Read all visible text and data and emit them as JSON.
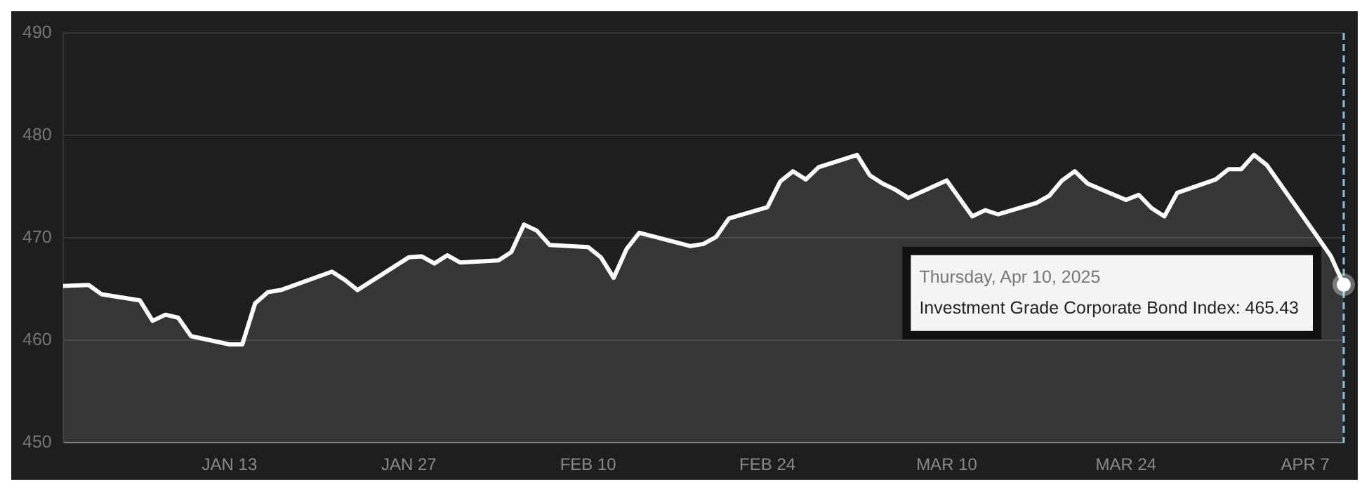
{
  "chart_data": {
    "type": "area",
    "x": [
      "2024-12-31",
      "2025-01-02",
      "2025-01-03",
      "2025-01-06",
      "2025-01-07",
      "2025-01-08",
      "2025-01-09",
      "2025-01-10",
      "2025-01-13",
      "2025-01-14",
      "2025-01-15",
      "2025-01-16",
      "2025-01-17",
      "2025-01-21",
      "2025-01-22",
      "2025-01-23",
      "2025-01-27",
      "2025-01-28",
      "2025-01-29",
      "2025-01-30",
      "2025-01-31",
      "2025-02-03",
      "2025-02-04",
      "2025-02-05",
      "2025-02-06",
      "2025-02-07",
      "2025-02-10",
      "2025-02-11",
      "2025-02-12",
      "2025-02-13",
      "2025-02-14",
      "2025-02-18",
      "2025-02-19",
      "2025-02-20",
      "2025-02-21",
      "2025-02-24",
      "2025-02-25",
      "2025-02-26",
      "2025-02-27",
      "2025-02-28",
      "2025-03-03",
      "2025-03-04",
      "2025-03-05",
      "2025-03-06",
      "2025-03-07",
      "2025-03-10",
      "2025-03-12",
      "2025-03-13",
      "2025-03-14",
      "2025-03-17",
      "2025-03-18",
      "2025-03-19",
      "2025-03-20",
      "2025-03-21",
      "2025-03-24",
      "2025-03-25",
      "2025-03-26",
      "2025-03-27",
      "2025-03-28",
      "2025-03-31",
      "2025-04-01",
      "2025-04-02",
      "2025-04-03",
      "2025-04-04",
      "2025-04-08",
      "2025-04-09",
      "2025-04-10"
    ],
    "series": [
      {
        "color": "#ffffff",
        "values": [
          465.3,
          465.4,
          464.5,
          463.9,
          461.9,
          462.5,
          462.2,
          460.4,
          459.6,
          459.6,
          463.6,
          464.7,
          464.9,
          466.7,
          465.9,
          464.9,
          468.1,
          468.2,
          467.5,
          468.3,
          467.6,
          467.8,
          468.6,
          471.3,
          470.7,
          469.3,
          469.1,
          468.1,
          466.1,
          468.9,
          470.5,
          469.2,
          469.4,
          470.1,
          471.9,
          473.0,
          475.5,
          476.5,
          475.7,
          476.9,
          478.1,
          476.1,
          475.3,
          474.7,
          473.9,
          475.6,
          472.1,
          472.7,
          472.3,
          473.4,
          474.1,
          475.6,
          476.5,
          475.3,
          473.7,
          474.2,
          472.9,
          472.1,
          474.4,
          475.7,
          476.7,
          476.7,
          478.1,
          477.1,
          470.0,
          468.2,
          465.43
        ]
      }
    ],
    "xlim": [
      "2024-12-31",
      "2025-04-10"
    ],
    "xticks": [
      {
        "value": "2025-01-13",
        "label": "JAN 13"
      },
      {
        "value": "2025-01-27",
        "label": "JAN 27"
      },
      {
        "value": "2025-02-10",
        "label": "FEB 10"
      },
      {
        "value": "2025-02-24",
        "label": "FEB 24"
      },
      {
        "value": "2025-03-10",
        "label": "MAR 10"
      },
      {
        "value": "2025-03-24",
        "label": "MAR 24"
      },
      {
        "value": "2025-04-07",
        "label": "APR 7"
      }
    ],
    "ylim": [
      450,
      490
    ],
    "yticks": [
      450,
      460,
      470,
      480,
      490
    ],
    "grid": "y",
    "legend": false,
    "marker": "none",
    "line_style": "solid",
    "ref_lines": [
      {
        "axis": "x",
        "value": "2025-04-10",
        "color": "#7fc8e0",
        "line_style": "dashed"
      }
    ],
    "annotations": [
      "Thursday, Apr 10, 2025",
      "Investment Grade Corporate Bond Index: 465.43"
    ]
  }
}
